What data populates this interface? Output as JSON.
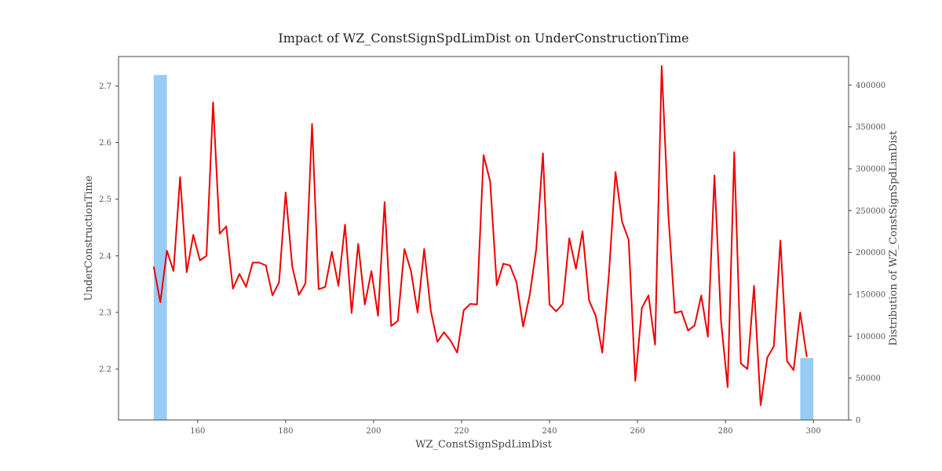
{
  "chart_data": {
    "type": "line",
    "title": "Impact of WZ_ConstSignSpdLimDist on UnderConstructionTime",
    "xlabel": "WZ_ConstSignSpdLimDist",
    "ylabel": "UnderConstructionTime",
    "y2label": "Distribution of WZ_ConstSignSpdLimDist",
    "xlim": [
      142,
      308
    ],
    "ylim": [
      2.11,
      2.752
    ],
    "y2lim": [
      0,
      434000
    ],
    "xticks": [
      "160",
      "180",
      "200",
      "220",
      "240",
      "260",
      "280",
      "300"
    ],
    "yticks": [
      "2.2",
      "2.3",
      "2.4",
      "2.5",
      "2.6",
      "2.7"
    ],
    "y2ticks": [
      "0",
      "50000",
      "100000",
      "150000",
      "200000",
      "250000",
      "300000",
      "350000",
      "400000"
    ],
    "grid": false,
    "line_color": "#ee0000",
    "bar_color": "#99ccf5",
    "series": [
      {
        "values": [
          [
            150,
            2.381
          ],
          [
            151.5,
            2.318
          ],
          [
            153,
            2.409
          ],
          [
            154.5,
            2.373
          ],
          [
            156,
            2.539
          ],
          [
            157.5,
            2.371
          ],
          [
            159,
            2.437
          ],
          [
            160.5,
            2.392
          ],
          [
            162,
            2.4
          ],
          [
            163.5,
            2.671
          ],
          [
            165,
            2.439
          ],
          [
            166.5,
            2.452
          ],
          [
            168,
            2.342
          ],
          [
            169.5,
            2.368
          ],
          [
            171,
            2.345
          ],
          [
            172.5,
            2.388
          ],
          [
            174,
            2.388
          ],
          [
            175.5,
            2.383
          ],
          [
            177,
            2.33
          ],
          [
            178.5,
            2.353
          ],
          [
            180,
            2.512
          ],
          [
            181.5,
            2.381
          ],
          [
            183,
            2.331
          ],
          [
            184.5,
            2.351
          ],
          [
            186,
            2.633
          ],
          [
            187.5,
            2.341
          ],
          [
            189,
            2.345
          ],
          [
            190.5,
            2.407
          ],
          [
            192,
            2.347
          ],
          [
            193.5,
            2.455
          ],
          [
            195,
            2.299
          ],
          [
            196.5,
            2.421
          ],
          [
            198,
            2.314
          ],
          [
            199.5,
            2.373
          ],
          [
            201,
            2.294
          ],
          [
            202.5,
            2.495
          ],
          [
            204,
            2.276
          ],
          [
            205.5,
            2.285
          ],
          [
            207,
            2.412
          ],
          [
            208.5,
            2.373
          ],
          [
            210,
            2.3
          ],
          [
            211.5,
            2.412
          ],
          [
            213,
            2.303
          ],
          [
            214.5,
            2.248
          ],
          [
            216,
            2.265
          ],
          [
            217.5,
            2.25
          ],
          [
            219,
            2.229
          ],
          [
            220.5,
            2.304
          ],
          [
            222,
            2.315
          ],
          [
            223.5,
            2.314
          ],
          [
            225,
            2.578
          ],
          [
            226.5,
            2.531
          ],
          [
            228,
            2.348
          ],
          [
            229.5,
            2.386
          ],
          [
            231,
            2.383
          ],
          [
            232.5,
            2.353
          ],
          [
            234,
            2.275
          ],
          [
            235.5,
            2.331
          ],
          [
            237,
            2.413
          ],
          [
            238.5,
            2.581
          ],
          [
            240,
            2.314
          ],
          [
            241.5,
            2.302
          ],
          [
            243,
            2.315
          ],
          [
            244.5,
            2.431
          ],
          [
            246,
            2.377
          ],
          [
            247.5,
            2.443
          ],
          [
            249,
            2.321
          ],
          [
            250.5,
            2.294
          ],
          [
            252,
            2.229
          ],
          [
            253.5,
            2.367
          ],
          [
            255,
            2.548
          ],
          [
            256.5,
            2.46
          ],
          [
            258,
            2.428
          ],
          [
            259.5,
            2.179
          ],
          [
            261,
            2.308
          ],
          [
            262.5,
            2.33
          ],
          [
            264,
            2.243
          ],
          [
            265.5,
            2.735
          ],
          [
            267,
            2.475
          ],
          [
            268.5,
            2.299
          ],
          [
            270,
            2.302
          ],
          [
            271.5,
            2.268
          ],
          [
            273,
            2.277
          ],
          [
            274.5,
            2.33
          ],
          [
            276,
            2.257
          ],
          [
            277.5,
            2.542
          ],
          [
            279,
            2.284
          ],
          [
            280.5,
            2.168
          ],
          [
            282,
            2.583
          ],
          [
            283.5,
            2.21
          ],
          [
            285,
            2.2
          ],
          [
            286.5,
            2.347
          ],
          [
            288,
            2.136
          ],
          [
            289.5,
            2.22
          ],
          [
            291,
            2.24
          ],
          [
            292.5,
            2.427
          ],
          [
            294,
            2.214
          ],
          [
            295.5,
            2.198
          ],
          [
            297,
            2.3
          ],
          [
            298.5,
            2.221
          ]
        ]
      }
    ],
    "bars": [
      {
        "x": 151.5,
        "width": 3,
        "value": 412000
      },
      {
        "x": 298.5,
        "width": 3,
        "value": 74000
      }
    ]
  }
}
